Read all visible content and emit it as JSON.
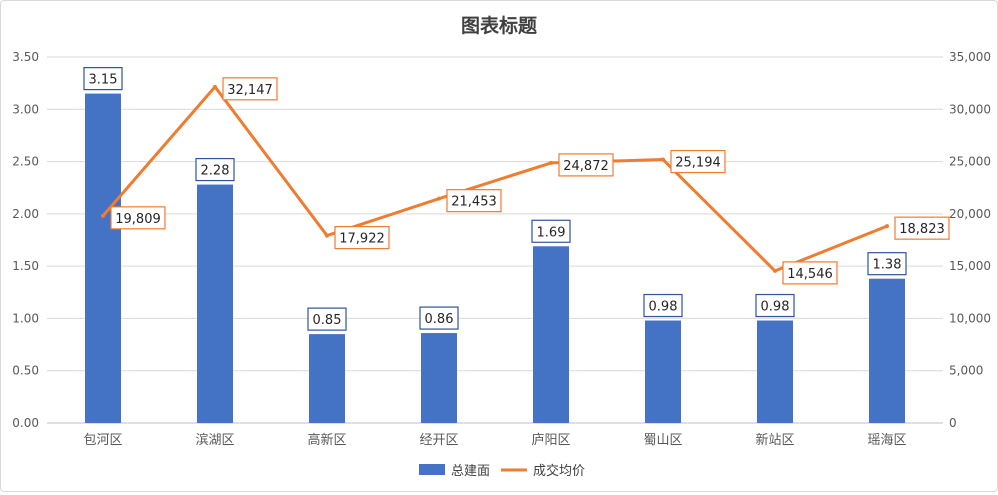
{
  "chart_data": {
    "type": "bar",
    "title": "图表标题",
    "categories": [
      "包河区",
      "滨湖区",
      "高新区",
      "经开区",
      "庐阳区",
      "蜀山区",
      "新站区",
      "瑶海区"
    ],
    "series": [
      {
        "name": "总建面",
        "type": "bar",
        "axis": "left",
        "values": [
          3.15,
          2.28,
          0.85,
          0.86,
          1.69,
          0.98,
          0.98,
          1.38
        ],
        "labels": [
          "3.15",
          "2.28",
          "0.85",
          "0.86",
          "1.69",
          "0.98",
          "0.98",
          "1.38"
        ],
        "color": "#4472C4"
      },
      {
        "name": "成交均价",
        "type": "line",
        "axis": "right",
        "values": [
          19809,
          32147,
          17922,
          21453,
          24872,
          25194,
          14546,
          18823
        ],
        "labels": [
          "19,809",
          "32,147",
          "17,922",
          "21,453",
          "24,872",
          "25,194",
          "14,546",
          "18,823"
        ],
        "color": "#ED7D31"
      }
    ],
    "y_left": {
      "ylim": [
        0,
        3.5
      ],
      "ticks": [
        "0.00",
        "0.50",
        "1.00",
        "1.50",
        "2.00",
        "2.50",
        "3.00",
        "3.50"
      ]
    },
    "y_right": {
      "ylim": [
        0,
        35000
      ],
      "ticks": [
        "0",
        "5,000",
        "10,000",
        "15,000",
        "20,000",
        "25,000",
        "30,000",
        "35,000"
      ]
    },
    "grid": true,
    "legend": "bottom"
  }
}
